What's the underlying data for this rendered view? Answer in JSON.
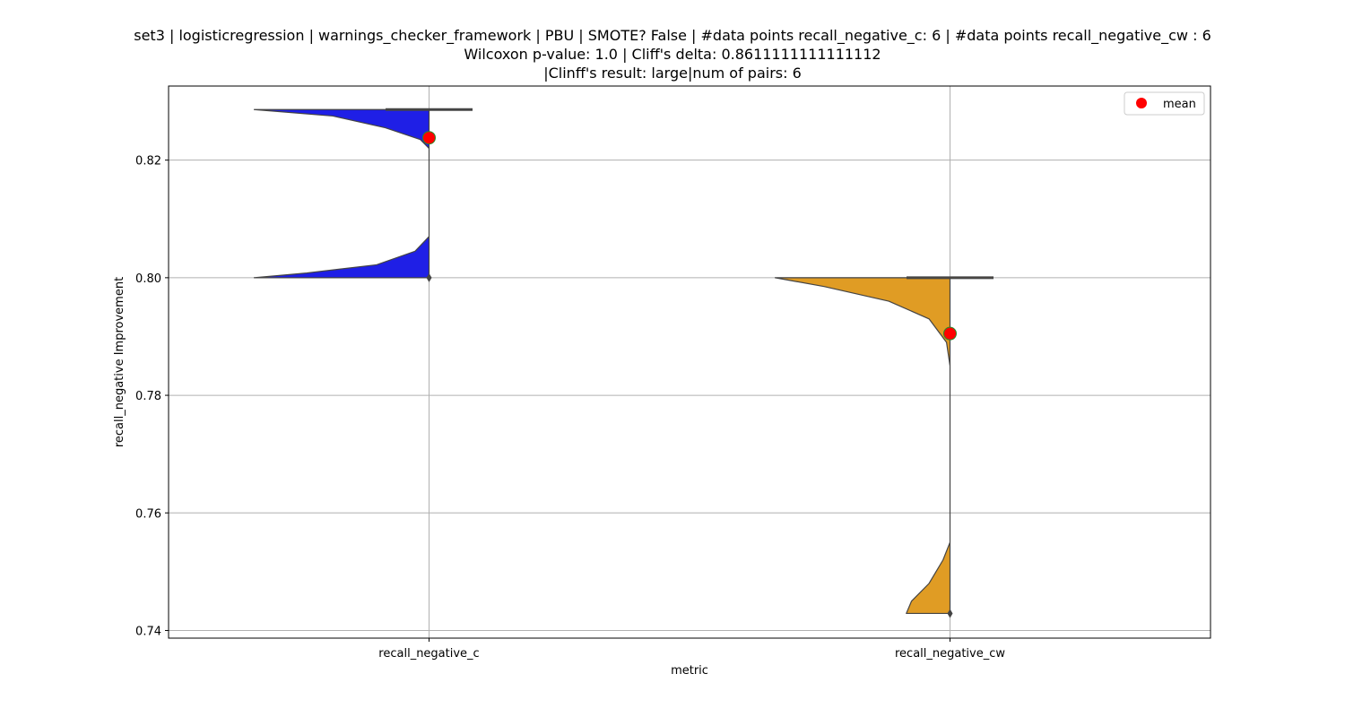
{
  "title": {
    "line1": "set3 | logisticregression | warnings_checker_framework | PBU | SMOTE? False | #data points recall_negative_c: 6 | #data points recall_negative_cw : 6",
    "line2": "Wilcoxon p-value: 1.0 | Cliff's delta: 0.8611111111111112",
    "line3": "|Clinff's result: large|num of pairs: 6"
  },
  "chart_data": {
    "type": "violin",
    "xlabel": "metric",
    "ylabel": "recall_negative Improvement",
    "ylim": [
      0.7387,
      0.8326
    ],
    "yticks": [
      0.74,
      0.76,
      0.78,
      0.8,
      0.82
    ],
    "ytick_labels": [
      "0.74",
      "0.76",
      "0.78",
      "0.80",
      "0.82"
    ],
    "grid": true,
    "legend": {
      "position": "top-right",
      "entries": [
        {
          "label": "mean",
          "color": "#ff0000"
        }
      ]
    },
    "categories": [
      "recall_negative_c",
      "recall_negative_cw"
    ],
    "series": [
      {
        "category": "recall_negative_c",
        "color": "#1f1fe6",
        "values": [
          0.8286,
          0.8286,
          0.8286,
          0.8286,
          0.8286,
          0.8
        ],
        "min": 0.8,
        "max": 0.8286,
        "median": 0.8286,
        "q1": 0.8286,
        "q3": 0.8286,
        "mean": 0.8238,
        "outliers": [
          0.8
        ],
        "violin_profile": [
          [
            0.8286,
            1.0
          ],
          [
            0.8275,
            0.55
          ],
          [
            0.8255,
            0.25
          ],
          [
            0.8235,
            0.05
          ],
          [
            0.822,
            0.0
          ],
          [
            0.815,
            0.0
          ],
          [
            0.81,
            0.0
          ],
          [
            0.807,
            0.0
          ],
          [
            0.8045,
            0.08
          ],
          [
            0.8022,
            0.3
          ],
          [
            0.8008,
            0.7
          ],
          [
            0.8,
            1.0
          ]
        ]
      },
      {
        "category": "recall_negative_cw",
        "color": "#e09c24",
        "values": [
          0.8,
          0.8,
          0.8,
          0.8,
          0.8,
          0.7429
        ],
        "min": 0.7429,
        "max": 0.8,
        "median": 0.8,
        "q1": 0.8,
        "q3": 0.8,
        "mean": 0.7905,
        "outliers": [
          0.7429
        ],
        "violin_profile": [
          [
            0.8,
            1.0
          ],
          [
            0.7985,
            0.72
          ],
          [
            0.796,
            0.35
          ],
          [
            0.793,
            0.12
          ],
          [
            0.789,
            0.02
          ],
          [
            0.785,
            0.0
          ],
          [
            0.77,
            0.0
          ],
          [
            0.755,
            0.0
          ],
          [
            0.752,
            0.04
          ],
          [
            0.748,
            0.12
          ],
          [
            0.745,
            0.22
          ],
          [
            0.7429,
            0.25
          ]
        ]
      }
    ]
  }
}
